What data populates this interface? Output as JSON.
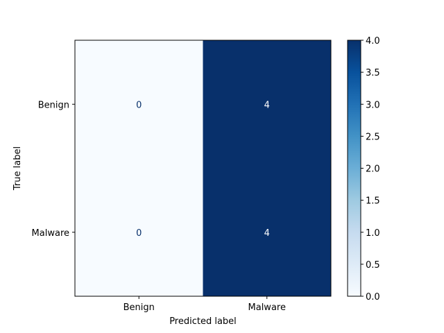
{
  "chart_data": {
    "type": "heatmap",
    "xlabel": "Predicted label",
    "ylabel": "True label",
    "x_categories": [
      "Benign",
      "Malware"
    ],
    "y_categories": [
      "Benign",
      "Malware"
    ],
    "values": [
      [
        0,
        4
      ],
      [
        0,
        4
      ]
    ],
    "colormap": "Blues",
    "color_low": "#f7fbff",
    "color_high": "#08306b",
    "colorbar": {
      "range": [
        0.0,
        4.0
      ],
      "ticks": [
        "0.0",
        "0.5",
        "1.0",
        "1.5",
        "2.0",
        "2.5",
        "3.0",
        "3.5",
        "4.0"
      ]
    }
  }
}
